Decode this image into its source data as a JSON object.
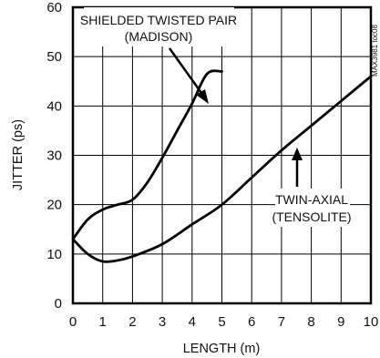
{
  "chart_data": {
    "type": "line",
    "title": "",
    "xlabel": "LENGTH (m)",
    "ylabel": "JITTER (ps)",
    "xlim": [
      0,
      10
    ],
    "ylim": [
      0,
      60
    ],
    "x_ticks": [
      "0",
      "1",
      "2",
      "3",
      "4",
      "5",
      "6",
      "7",
      "8",
      "9",
      "10"
    ],
    "y_ticks": [
      "0",
      "10",
      "20",
      "30",
      "40",
      "50",
      "60"
    ],
    "grid": true,
    "series": [
      {
        "name": "SHIELDED TWISTED PAIR (MADISON)",
        "x": [
          0,
          0.5,
          1,
          1.5,
          2,
          2.5,
          3,
          3.5,
          4,
          4.5,
          5
        ],
        "y": [
          13,
          17,
          19,
          20,
          21,
          24.5,
          29.5,
          35,
          40.5,
          46.5,
          47
        ]
      },
      {
        "name": "TWIN-AXIAL (TENSOLITE)",
        "x": [
          0,
          0.5,
          1,
          1.5,
          2,
          3,
          4,
          5,
          6,
          7,
          8,
          9,
          10
        ],
        "y": [
          13,
          10,
          8.5,
          8.7,
          9.5,
          12,
          16,
          20,
          25.5,
          31,
          36,
          41,
          46
        ]
      }
    ],
    "annotations": [
      {
        "lines": [
          "SHIELDED TWISTED PAIR",
          "(MADISON)"
        ],
        "target_series": 0
      },
      {
        "lines": [
          "TWIN-AXIAL",
          "(TENSOLITE)"
        ],
        "target_series": 1
      }
    ],
    "side_label": "MAX3981 toc08",
    "colors": {
      "line": "#000000",
      "grid": "#000000",
      "text": "#111111"
    }
  }
}
